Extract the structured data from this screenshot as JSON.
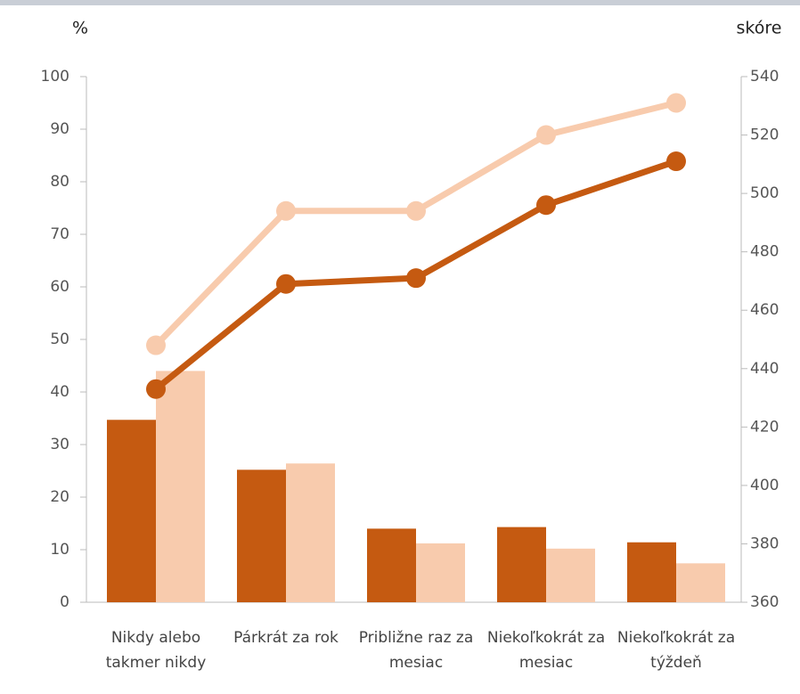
{
  "chart_data": {
    "type": "bar",
    "y_label": "%",
    "y2_label": "skóre",
    "categories": [
      "Nikdy alebo takmer nikdy",
      "Párkrát za rok",
      "Približne raz za mesiac",
      "Niekoľkokrát za mesiac",
      "Niekoľkokrát za týždeň"
    ],
    "series": [
      {
        "type": "bar",
        "color": "#c55a11",
        "values": [
          34.7,
          25.2,
          14,
          14.3,
          11.4
        ]
      },
      {
        "type": "bar",
        "color": "#f8cbad",
        "values": [
          44,
          26.4,
          11.2,
          10.2,
          7.4
        ]
      },
      {
        "type": "line",
        "axis": "y2",
        "color": "#c55a11",
        "values": [
          433,
          469,
          471,
          496,
          511
        ]
      },
      {
        "type": "line",
        "axis": "y2",
        "color": "#f8cbad",
        "values": [
          448,
          494,
          494,
          520,
          531
        ]
      }
    ],
    "ylim": [
      0,
      100
    ],
    "yticks": [
      0,
      10,
      20,
      30,
      40,
      50,
      60,
      70,
      80,
      90,
      100
    ],
    "y2lim": [
      360,
      540
    ],
    "y2ticks": [
      360,
      380,
      400,
      420,
      440,
      460,
      480,
      500,
      520,
      540
    ],
    "grid": false
  }
}
